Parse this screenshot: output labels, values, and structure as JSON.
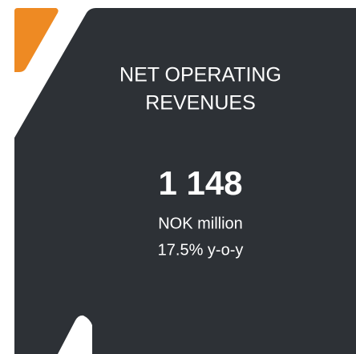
{
  "tile": {
    "title_lines": [
      "NET OPERATING",
      "REVENUES"
    ],
    "value": "1 148",
    "unit": "NOK million",
    "change": "17.5% y-o-y"
  }
}
